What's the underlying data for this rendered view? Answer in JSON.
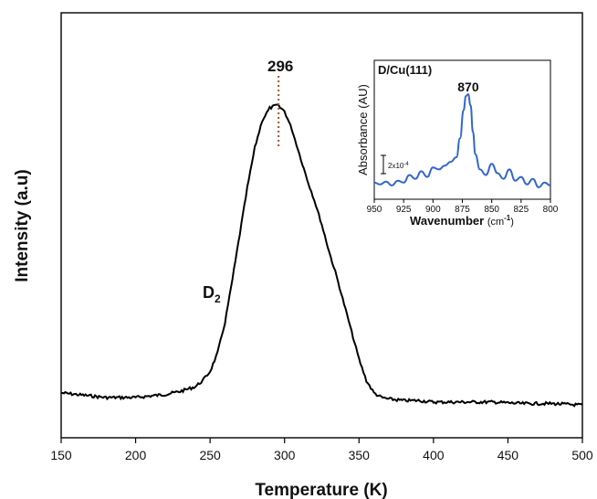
{
  "chart_data": [
    {
      "type": "line",
      "title": "",
      "xlabel": "Temperature (K)",
      "ylabel": "Intensity (a.u)",
      "xlim": [
        150,
        500
      ],
      "x_ticks": [
        150,
        200,
        250,
        300,
        350,
        400,
        450,
        500
      ],
      "y_ticks_shown": false,
      "grid": false,
      "series": [
        {
          "name": "D₂",
          "color": "#000000",
          "x": [
            150,
            160,
            170,
            180,
            190,
            200,
            210,
            220,
            230,
            240,
            245,
            250,
            255,
            260,
            265,
            270,
            275,
            280,
            285,
            290,
            295,
            300,
            305,
            310,
            315,
            320,
            325,
            330,
            335,
            340,
            345,
            350,
            355,
            360,
            365,
            370,
            380,
            390,
            400,
            420,
            440,
            460,
            480,
            500
          ],
          "y": [
            0.06,
            0.055,
            0.05,
            0.045,
            0.045,
            0.045,
            0.05,
            0.055,
            0.065,
            0.08,
            0.1,
            0.13,
            0.19,
            0.29,
            0.43,
            0.58,
            0.73,
            0.86,
            0.95,
            0.99,
            1.0,
            0.98,
            0.92,
            0.84,
            0.76,
            0.69,
            0.61,
            0.52,
            0.44,
            0.35,
            0.26,
            0.17,
            0.1,
            0.06,
            0.045,
            0.04,
            0.035,
            0.035,
            0.03,
            0.03,
            0.03,
            0.025,
            0.025,
            0.02
          ]
        }
      ],
      "annotations": {
        "peak_label": "296",
        "peak_x": 296,
        "series_label_main": "D",
        "series_label_sub": "2"
      }
    },
    {
      "type": "line",
      "title": "D/Cu(111)",
      "xlabel_main": "Wavenumber ",
      "xlabel_unit": "(cm",
      "xlabel_exp": "-1",
      "xlabel_close": ")",
      "ylabel": "Absorbance (AU)",
      "xlim": [
        950,
        800
      ],
      "x_ticks": [
        950,
        925,
        900,
        875,
        850,
        825,
        800
      ],
      "scale_bar_label": "2x10",
      "scale_bar_exp": "-4",
      "series": [
        {
          "name": "",
          "color": "#3366cc",
          "x": [
            950,
            945,
            940,
            935,
            930,
            925,
            920,
            915,
            910,
            905,
            900,
            895,
            890,
            885,
            880,
            877,
            874,
            872,
            870,
            868,
            866,
            864,
            860,
            855,
            850,
            845,
            840,
            835,
            830,
            825,
            820,
            815,
            810,
            805,
            800
          ],
          "y": [
            0.08,
            0.06,
            0.09,
            0.05,
            0.1,
            0.08,
            0.16,
            0.12,
            0.2,
            0.14,
            0.24,
            0.22,
            0.26,
            0.3,
            0.35,
            0.55,
            0.85,
            1.0,
            1.02,
            0.9,
            0.62,
            0.38,
            0.22,
            0.16,
            0.28,
            0.18,
            0.12,
            0.22,
            0.1,
            0.14,
            0.06,
            0.12,
            0.03,
            0.08,
            0.05
          ]
        }
      ],
      "annotations": {
        "peak_label": "870",
        "peak_x": 870
      }
    }
  ]
}
